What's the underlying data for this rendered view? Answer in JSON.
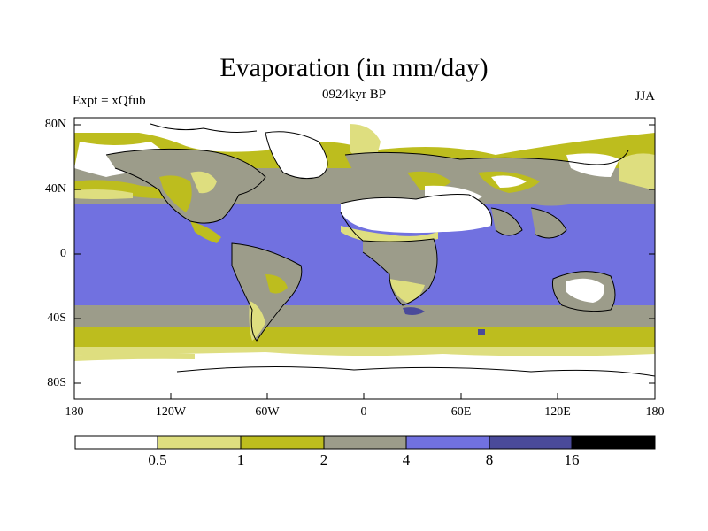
{
  "title": "Evaporation (in mm/day)",
  "subtitle": "0924kyr BP",
  "left_label": "Expt = xQfub",
  "right_label": "JJA",
  "map": {
    "lat_ticks": [
      "80N",
      "40N",
      "0",
      "40S",
      "80S"
    ],
    "lon_ticks": [
      "180",
      "120W",
      "60W",
      "0",
      "60E",
      "120E",
      "180"
    ]
  },
  "colorbar": {
    "levels": [
      "0.5",
      "1",
      "2",
      "4",
      "8",
      "16"
    ],
    "colors": [
      "#ffffff",
      "#dede7f",
      "#bdbd1e",
      "#9c9c8a",
      "#7171e0",
      "#4a4a9a",
      "#000000"
    ]
  }
}
